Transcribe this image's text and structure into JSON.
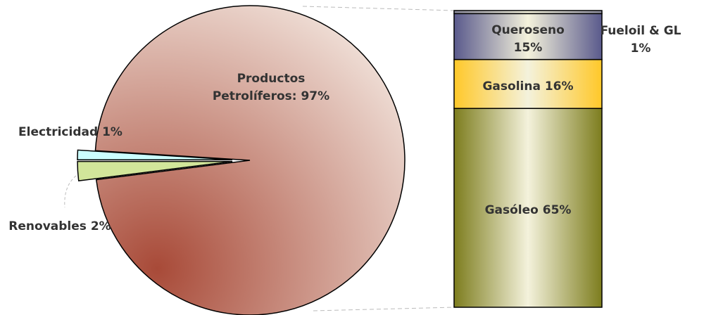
{
  "chart_data": [
    {
      "type": "pie",
      "labels": [
        "Productos Petrolíferos: 97%",
        "Electricidad 1%",
        "Renovables 2%"
      ],
      "values": [
        97,
        1,
        2
      ],
      "colors": [
        "#a84a38",
        "#ccffff",
        "#d2e69a"
      ]
    },
    {
      "type": "stacked_bar",
      "labels": [
        "Gasóleo 65%",
        "Gasolina 16%",
        "Queroseno 15%",
        "Fueloil & GL 1%"
      ],
      "values": [
        65,
        16,
        15,
        1
      ],
      "colors": [
        "#7d7d1e",
        "#ffc829",
        "#5a5a8c",
        "#8a8a9a"
      ]
    }
  ]
}
